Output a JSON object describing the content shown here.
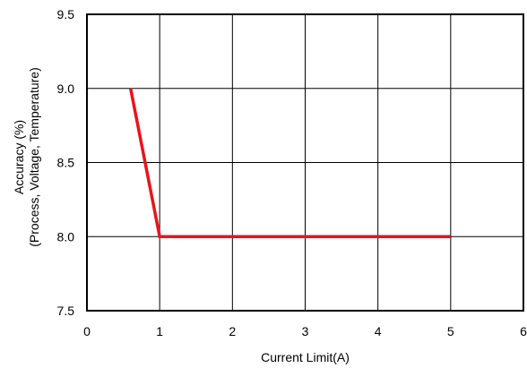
{
  "chart_data": {
    "type": "line",
    "title": "",
    "xlabel": "Current Limit(A)",
    "ylabel_lines": [
      "Accuracy (%)",
      "(Process, Voltage, Temperature)"
    ],
    "xlim": [
      0,
      6
    ],
    "ylim": [
      7.5,
      9.5
    ],
    "x_ticks": [
      0,
      1,
      2,
      3,
      4,
      5,
      6
    ],
    "x_tick_labels": [
      "0",
      "1",
      "2",
      "3",
      "4",
      "5",
      "6"
    ],
    "y_ticks": [
      7.5,
      8.0,
      8.5,
      9.0,
      9.5
    ],
    "y_tick_labels": [
      "7.5",
      "8.0",
      "8.5",
      "9.0",
      "9.5"
    ],
    "grid": true,
    "legend": "none",
    "series": [
      {
        "color": "#e8141c",
        "x": [
          0.6,
          1.0,
          5.0
        ],
        "y": [
          9.0,
          8.0,
          8.0
        ]
      }
    ]
  }
}
